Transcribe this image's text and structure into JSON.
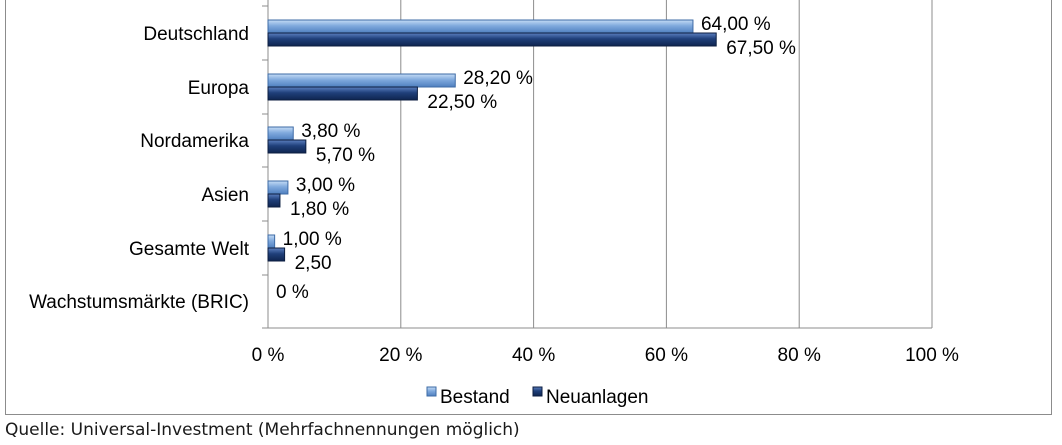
{
  "chart_data": {
    "type": "bar",
    "orientation": "horizontal",
    "categories": [
      "Deutschland",
      "Europa",
      "Nordamerika",
      "Asien",
      "Gesamte Welt",
      "Wachstumsmärkte (BRIC)"
    ],
    "series": [
      {
        "name": "Bestand",
        "color": "#6b9bd6",
        "values": [
          64.0,
          28.2,
          3.8,
          3.0,
          1.0,
          0
        ],
        "labels": [
          "64,00 %",
          "28,20 %",
          "3,80 %",
          "3,00 %",
          "1,00 %",
          "0 %"
        ]
      },
      {
        "name": "Neuanlagen",
        "color": "#1f3f7a",
        "values": [
          67.5,
          22.5,
          5.7,
          1.8,
          2.5,
          0
        ],
        "labels": [
          "67,50 %",
          "22,50 %",
          "5,70 %",
          "1,80 %",
          "2,50",
          ""
        ]
      }
    ],
    "xlim": [
      0,
      100
    ],
    "xticks": [
      0,
      20,
      40,
      60,
      80,
      100
    ],
    "xtick_labels": [
      "0 %",
      "20 %",
      "40 %",
      "60 %",
      "80 %",
      "100 %"
    ],
    "grid": true,
    "legend_position": "bottom"
  },
  "source_note": "Quelle: Universal-Investment (Mehrfachnennungen möglich)"
}
